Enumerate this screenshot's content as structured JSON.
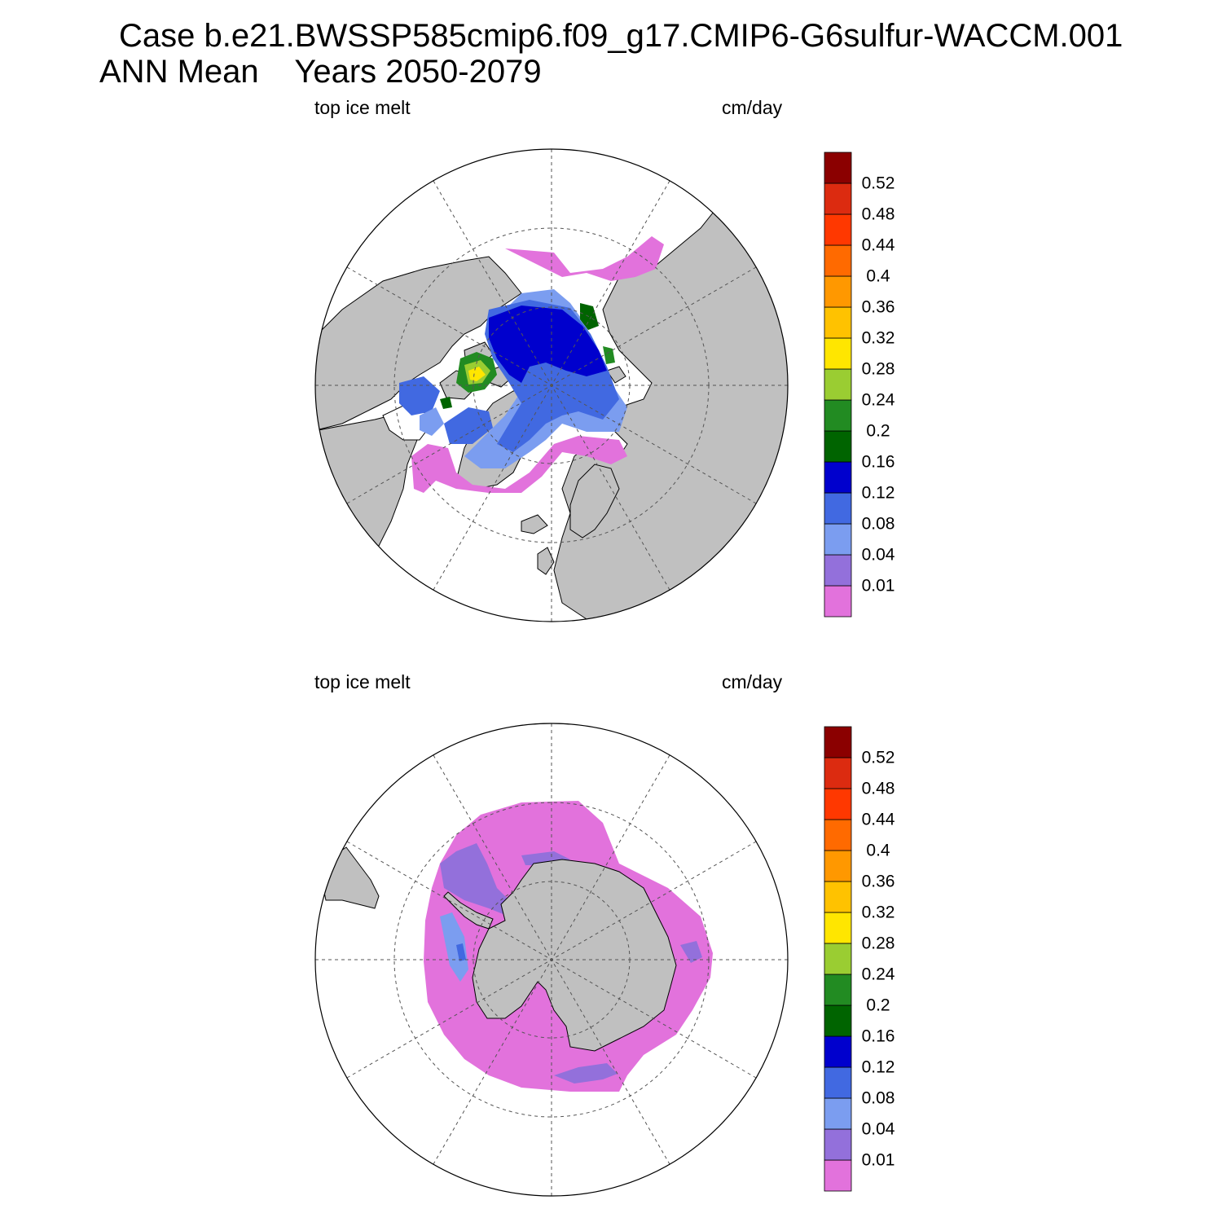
{
  "title": {
    "line1": "Case b.e21.BWSSP585cmip6.f09_g17.CMIP6-G6sulfur-WACCM.001",
    "line2": "ANN Mean    Years 2050-2079"
  },
  "panels": [
    {
      "id": "north",
      "hemisphere": "Northern Hemisphere polar stereographic",
      "left_label": "top ice melt",
      "right_label": "cm/day"
    },
    {
      "id": "south",
      "hemisphere": "Southern Hemisphere polar stereographic",
      "left_label": "top ice melt",
      "right_label": "cm/day"
    }
  ],
  "colorbar": {
    "levels": [
      "0.01",
      "0.04",
      "0.08",
      "0.12",
      "0.16",
      "0.2",
      "0.24",
      "0.28",
      "0.32",
      "0.36",
      "0.4",
      "0.44",
      "0.48",
      "0.52"
    ],
    "colors": [
      "#e272dc",
      "#9370db",
      "#7b9df0",
      "#4169e1",
      "#0000cd",
      "#006400",
      "#228b22",
      "#9acd32",
      "#ffe600",
      "#ffc200",
      "#ff9800",
      "#ff6a00",
      "#ff3800",
      "#dc2b10",
      "#8b0000"
    ]
  },
  "map_colors": {
    "land": "#c0c0c0",
    "ocean": "#ffffff",
    "coast": "#000000",
    "grid": "#555555"
  },
  "chart_data": [
    {
      "type": "heatmap",
      "title": "top ice melt",
      "units": "cm/day",
      "region": "Arctic",
      "summary": {
        "central_arctic": "0.12-0.16",
        "siberian_shelf_band": "0.08-0.12",
        "canadian_archipelago": "0.24-0.32",
        "baffin_hudson": "0.04-0.12",
        "marginal_ice_edge": "<0.01-0.04"
      }
    },
    {
      "type": "heatmap",
      "title": "top ice melt",
      "units": "cm/day",
      "region": "Antarctic",
      "summary": {
        "sea_ice_zone": "<0.01",
        "weddell_sea_patch": "0.01-0.04",
        "ross_sea_patch": "0.01-0.04",
        "peninsula_coast": "0.04-0.08"
      }
    }
  ]
}
